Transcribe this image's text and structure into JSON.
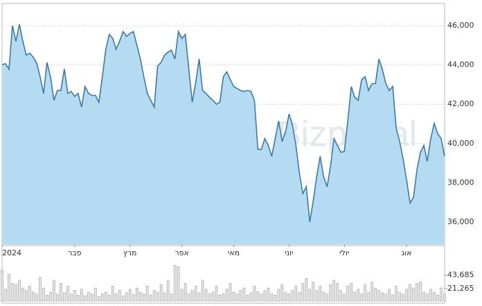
{
  "watermark": "Bizportal",
  "chart_data": [
    {
      "type": "area",
      "color": "#3a7aa6",
      "fill": "#b5dbf2",
      "grid": true,
      "ylim": [
        34870,
        47130
      ],
      "yticks": [
        {
          "value": 36000,
          "label": "36,000"
        },
        {
          "value": 38000,
          "label": "38,000"
        },
        {
          "value": 40000,
          "label": "40,000"
        },
        {
          "value": 42000,
          "label": "42,000"
        },
        {
          "value": 44000,
          "label": "44,000"
        },
        {
          "value": 46000,
          "label": "46,000"
        }
      ],
      "categories": [
        "2024",
        null,
        null,
        null,
        null,
        null,
        null,
        null,
        null,
        null,
        null,
        null,
        null,
        null,
        null,
        null,
        null,
        null,
        null,
        null,
        null,
        "פבר",
        null,
        null,
        null,
        null,
        null,
        null,
        null,
        null,
        null,
        null,
        null,
        null,
        null,
        null,
        null,
        "מרץ",
        null,
        null,
        null,
        null,
        null,
        null,
        null,
        null,
        null,
        null,
        null,
        null,
        null,
        null,
        "אפר",
        null,
        null,
        null,
        null,
        null,
        null,
        null,
        null,
        null,
        null,
        null,
        null,
        null,
        null,
        "מאי",
        null,
        null,
        null,
        null,
        null,
        null,
        null,
        null,
        null,
        null,
        null,
        null,
        null,
        null,
        null,
        "יוני",
        null,
        null,
        null,
        null,
        null,
        null,
        null,
        null,
        null,
        null,
        null,
        null,
        null,
        null,
        null,
        "יולי",
        null,
        null,
        null,
        null,
        null,
        null,
        null,
        null,
        null,
        null,
        null,
        null,
        null,
        null,
        null,
        null,
        null,
        "אוג",
        null,
        null,
        null,
        null,
        null,
        null,
        null,
        null,
        null,
        null,
        null
      ],
      "values": [
        44020,
        44060,
        43780,
        46000,
        45200,
        46070,
        45200,
        44500,
        44600,
        44400,
        44100,
        43400,
        42550,
        44130,
        43400,
        42200,
        42700,
        42700,
        43800,
        42550,
        42650,
        42400,
        42550,
        41850,
        42900,
        42550,
        42450,
        42450,
        42100,
        43400,
        44800,
        45550,
        45350,
        44800,
        45200,
        45700,
        45450,
        45600,
        45700,
        45000,
        44300,
        43400,
        42550,
        42200,
        41850,
        43950,
        44130,
        44500,
        44650,
        44750,
        44300,
        45700,
        45350,
        45550,
        43800,
        42100,
        43100,
        44300,
        42700,
        42550,
        42350,
        42200,
        42000,
        42100,
        43400,
        43650,
        43250,
        42900,
        42800,
        42700,
        42650,
        42700,
        42650,
        42200,
        39700,
        39700,
        40250,
        39900,
        39350,
        40250,
        41150,
        40100,
        40600,
        41500,
        40950,
        39900,
        38500,
        37450,
        37800,
        36000,
        37080,
        38300,
        39350,
        38300,
        37800,
        38850,
        40250,
        39900,
        39550,
        39600,
        41150,
        42900,
        42350,
        42200,
        43250,
        43400,
        42700,
        43050,
        43050,
        44300,
        43780,
        43050,
        42700,
        42900,
        40780,
        40100,
        39200,
        38150,
        36970,
        37250,
        38660,
        39550,
        39900,
        39100,
        40250,
        41030,
        40500,
        40250,
        39350
      ]
    },
    {
      "type": "bar",
      "color": "#9a9a9a",
      "fill": "#e6e6e6",
      "ylim": [
        0,
        90900
      ],
      "yticks": [
        {
          "value": 21265,
          "label": "21,265"
        },
        {
          "value": 43685,
          "label": "43,685"
        }
      ],
      "values": [
        52000,
        20000,
        45000,
        30000,
        28000,
        35000,
        22000,
        18000,
        25000,
        15000,
        12000,
        40000,
        22000,
        10000,
        15000,
        35000,
        12000,
        30000,
        14000,
        25000,
        12000,
        18000,
        10000,
        20000,
        9000,
        15000,
        12000,
        22000,
        8000,
        12000,
        15000,
        10000,
        25000,
        12000,
        18000,
        9000,
        14000,
        20000,
        11000,
        22000,
        15000,
        12000,
        25000,
        10000,
        18000,
        15000,
        28000,
        14000,
        35000,
        12000,
        60000,
        58000,
        20000,
        30000,
        12000,
        18000,
        25000,
        14000,
        35000,
        20000,
        12000,
        15000,
        25000,
        10000,
        12000,
        20000,
        30000,
        15000,
        12000,
        18000,
        22000,
        10000,
        14000,
        25000,
        16000,
        12000,
        18000,
        22000,
        12000,
        10000,
        20000,
        28000,
        15000,
        12000,
        18000,
        25000,
        15000,
        30000,
        38000,
        20000,
        32000,
        18000,
        25000,
        15000,
        12000,
        28000,
        35000,
        30000,
        18000,
        12000,
        25000,
        30000,
        15000,
        20000,
        12000,
        28000,
        15000,
        32000,
        22000,
        18000,
        14000,
        12000,
        20000,
        10000,
        25000,
        15000,
        12000,
        20000,
        28000,
        22000,
        30000,
        32000,
        15000,
        12000,
        20000,
        15000,
        10000,
        22000,
        12000
      ]
    }
  ]
}
